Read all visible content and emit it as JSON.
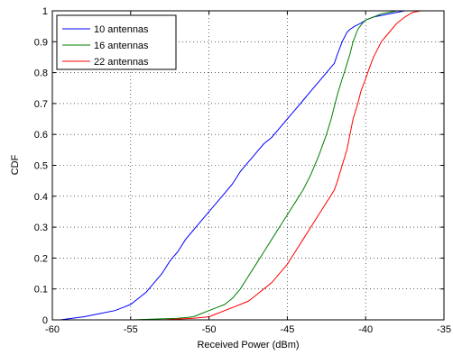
{
  "chart_data": {
    "type": "line",
    "title": "",
    "xlabel": "Received Power (dBm)",
    "ylabel": "CDF",
    "xlim": [
      -60,
      -35
    ],
    "ylim": [
      0,
      1
    ],
    "x_ticks": [
      -60,
      -55,
      -50,
      -45,
      -40,
      -35
    ],
    "y_ticks": [
      0,
      0.1,
      0.2,
      0.3,
      0.4,
      0.5,
      0.6,
      0.7,
      0.8,
      0.9,
      1
    ],
    "x_tick_labels": [
      "-60",
      "-55",
      "-50",
      "-45",
      "-40",
      "-35"
    ],
    "y_tick_labels": [
      "0",
      "0.1",
      "0.2",
      "0.3",
      "0.4",
      "0.5",
      "0.6",
      "0.7",
      "0.8",
      "0.9",
      "1"
    ],
    "grid": true,
    "legend_position": "top-left",
    "series": [
      {
        "name": "10 antennas",
        "color": "#0000ff",
        "x": [
          -59.5,
          -58,
          -57,
          -56,
          -55.5,
          -55,
          -54.5,
          -54,
          -53.5,
          -53,
          -52.5,
          -52,
          -51.5,
          -51,
          -50.5,
          -50,
          -49.5,
          -49,
          -48.5,
          -48,
          -47.5,
          -47,
          -46.5,
          -46,
          -45.5,
          -45,
          -44.5,
          -44,
          -43.5,
          -43,
          -42.5,
          -42,
          -41.8,
          -41.5,
          -41.2,
          -41,
          -40.7,
          -40.3,
          -40,
          -39.5,
          -39,
          -38.5,
          -38,
          -37.5,
          -37
        ],
        "y": [
          0,
          0.01,
          0.02,
          0.03,
          0.04,
          0.05,
          0.07,
          0.09,
          0.12,
          0.15,
          0.19,
          0.22,
          0.26,
          0.29,
          0.32,
          0.35,
          0.38,
          0.41,
          0.44,
          0.48,
          0.51,
          0.54,
          0.57,
          0.59,
          0.62,
          0.65,
          0.68,
          0.71,
          0.74,
          0.77,
          0.8,
          0.83,
          0.86,
          0.9,
          0.93,
          0.94,
          0.95,
          0.96,
          0.97,
          0.98,
          0.985,
          0.99,
          0.995,
          1,
          1
        ]
      },
      {
        "name": "16 antennas",
        "color": "#008000",
        "x": [
          -55,
          -52,
          -51,
          -50.5,
          -50,
          -49.5,
          -49,
          -48.5,
          -48,
          -47.5,
          -47,
          -46.5,
          -46,
          -45.5,
          -45,
          -44.5,
          -44,
          -43.5,
          -43,
          -42.5,
          -42.2,
          -42,
          -41.8,
          -41.5,
          -41.3,
          -41,
          -40.8,
          -40.5,
          -40.2,
          -40,
          -39.5,
          -39,
          -38.5,
          -38,
          -37.5
        ],
        "y": [
          0,
          0.005,
          0.01,
          0.02,
          0.03,
          0.04,
          0.05,
          0.07,
          0.1,
          0.14,
          0.18,
          0.22,
          0.26,
          0.3,
          0.34,
          0.38,
          0.42,
          0.47,
          0.53,
          0.6,
          0.65,
          0.69,
          0.73,
          0.78,
          0.81,
          0.86,
          0.9,
          0.94,
          0.96,
          0.97,
          0.98,
          0.99,
          0.995,
          1,
          1
        ]
      },
      {
        "name": "22 antennas",
        "color": "#ff0000",
        "x": [
          -53,
          -51,
          -50,
          -49.5,
          -49,
          -48.5,
          -48,
          -47.5,
          -47,
          -46.5,
          -46,
          -45.5,
          -45,
          -44.5,
          -44,
          -43.5,
          -43,
          -42.5,
          -42,
          -41.8,
          -41.5,
          -41.2,
          -41,
          -40.8,
          -40.5,
          -40.3,
          -40,
          -39.8,
          -39.5,
          -39.2,
          -39,
          -38.5,
          -38,
          -37.5,
          -37,
          -36.5
        ],
        "y": [
          0,
          0.005,
          0.01,
          0.02,
          0.03,
          0.04,
          0.05,
          0.06,
          0.08,
          0.1,
          0.12,
          0.15,
          0.18,
          0.22,
          0.26,
          0.3,
          0.34,
          0.38,
          0.42,
          0.45,
          0.5,
          0.55,
          0.6,
          0.65,
          0.7,
          0.74,
          0.78,
          0.81,
          0.85,
          0.88,
          0.9,
          0.93,
          0.96,
          0.98,
          0.995,
          1
        ]
      }
    ]
  }
}
